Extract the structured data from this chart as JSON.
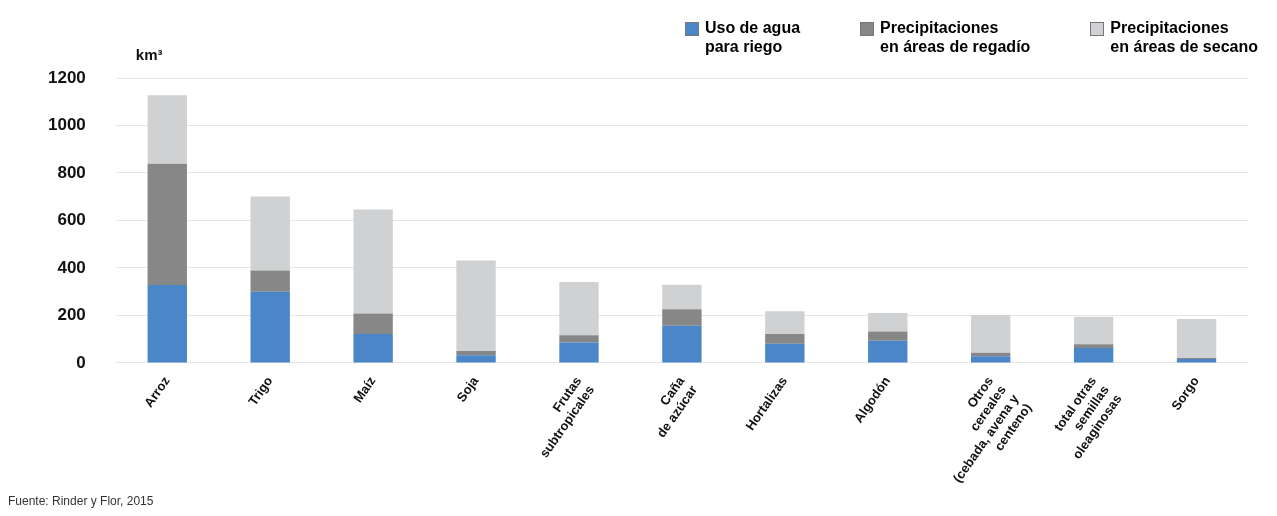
{
  "chart_data": {
    "type": "bar",
    "stacked": true,
    "ylabel": "km³",
    "categories": [
      "Arroz",
      "Trigo",
      "Maíz",
      "Soja",
      "Frutas\nsubtropicales",
      "Caña\nde azúcar",
      "Hortalizas",
      "Algodón",
      "Otros\ncereales\n(cebada, avena y\ncenteno)",
      "total otras\nsemillas\noleaginosas",
      "Sorgo"
    ],
    "series": [
      {
        "name": "Uso de agua\npara riego",
        "color": "#4a86c8",
        "values": [
          328,
          300,
          122,
          32,
          86,
          157,
          81,
          94,
          28,
          63,
          17
        ]
      },
      {
        "name": "Precipitaciones\nen áreas de regadío",
        "color": "#878787",
        "values": [
          511,
          89,
          86,
          18,
          31,
          69,
          41,
          38,
          15,
          16,
          4
        ]
      },
      {
        "name": "Precipitaciones\nen áreas de secano",
        "color": "#d0d1d3",
        "values": [
          288,
          312,
          438,
          381,
          224,
          103,
          96,
          78,
          159,
          116,
          164
        ]
      }
    ],
    "ylim": [
      0,
      1200
    ],
    "yticks": [
      0,
      200,
      400,
      600,
      800,
      1000,
      1200
    ],
    "grid": "y",
    "legend": "top right",
    "annotations": [
      "Fuente: Rinder y Flor, 2015"
    ]
  }
}
